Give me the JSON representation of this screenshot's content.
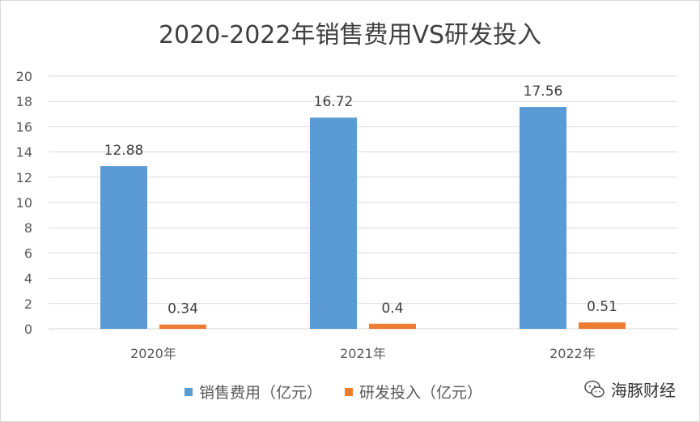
{
  "chart_data": {
    "type": "bar",
    "title": "2020-2022年销售费用VS研发投入",
    "categories": [
      "2020年",
      "2021年",
      "2022年"
    ],
    "series": [
      {
        "name": "销售费用（亿元）",
        "values": [
          12.88,
          16.72,
          17.56
        ],
        "labels": [
          "12.88",
          "16.72",
          "17.56"
        ],
        "color": "#5b9bd5"
      },
      {
        "name": "研发投入（亿元）",
        "values": [
          0.34,
          0.4,
          0.51
        ],
        "labels": [
          "0.34",
          "0.4",
          "0.51"
        ],
        "color": "#ed7d31"
      }
    ],
    "ylim": [
      0,
      20
    ],
    "yticks": [
      "0",
      "2",
      "4",
      "6",
      "8",
      "10",
      "12",
      "14",
      "16",
      "18",
      "20"
    ],
    "grid": true,
    "legend": "bottom"
  },
  "watermark": {
    "text": "海豚财经",
    "icon": "wechat-icon"
  }
}
